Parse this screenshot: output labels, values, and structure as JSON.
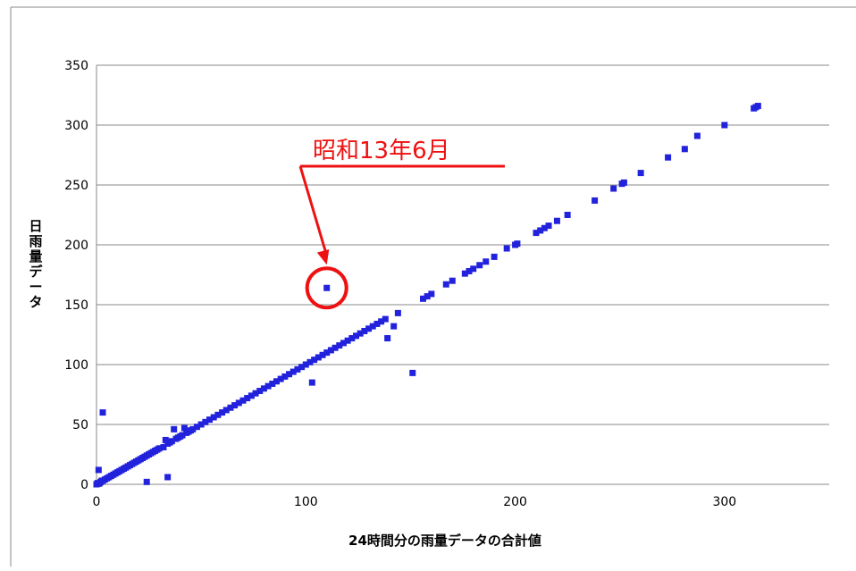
{
  "chart_data": {
    "type": "scatter",
    "xlabel": "24時間分の雨量データの合計値",
    "ylabel": "日雨量データ",
    "xlim": [
      0,
      350
    ],
    "ylim": [
      0,
      350
    ],
    "x_ticks": [
      0,
      100,
      200,
      300
    ],
    "y_ticks": [
      0,
      50,
      100,
      150,
      200,
      250,
      300,
      350
    ],
    "grid": "horizontal",
    "marker_color": "#2222dd",
    "annotation_color": "#ee1111",
    "annotation": {
      "text": "昭和13年6月",
      "point": [
        110,
        164
      ]
    },
    "points": [
      [
        0,
        0
      ],
      [
        0.5,
        1
      ],
      [
        1,
        12
      ],
      [
        1,
        0.5
      ],
      [
        1.5,
        1
      ],
      [
        2,
        2
      ],
      [
        2.5,
        3
      ],
      [
        3,
        60
      ],
      [
        3,
        3
      ],
      [
        4,
        4
      ],
      [
        5,
        5
      ],
      [
        6,
        6
      ],
      [
        7,
        7
      ],
      [
        8,
        8
      ],
      [
        9,
        9
      ],
      [
        10,
        10
      ],
      [
        11,
        11
      ],
      [
        12,
        12
      ],
      [
        13,
        13
      ],
      [
        14,
        14
      ],
      [
        15,
        15
      ],
      [
        16,
        16
      ],
      [
        17,
        17
      ],
      [
        18,
        18
      ],
      [
        19,
        19
      ],
      [
        20,
        20
      ],
      [
        21,
        21
      ],
      [
        22,
        22
      ],
      [
        23,
        23
      ],
      [
        24,
        24
      ],
      [
        25,
        25
      ],
      [
        26,
        26
      ],
      [
        27,
        27
      ],
      [
        28,
        28
      ],
      [
        29,
        29
      ],
      [
        30,
        30
      ],
      [
        32,
        31
      ],
      [
        33,
        37
      ],
      [
        34,
        34
      ],
      [
        35,
        35
      ],
      [
        36,
        36
      ],
      [
        37,
        46
      ],
      [
        38,
        38
      ],
      [
        39,
        39
      ],
      [
        40,
        40
      ],
      [
        41,
        41
      ],
      [
        42,
        47
      ],
      [
        43,
        43
      ],
      [
        44,
        44
      ],
      [
        45,
        45
      ],
      [
        46,
        46
      ],
      [
        48,
        48
      ],
      [
        50,
        50
      ],
      [
        52,
        52
      ],
      [
        54,
        54
      ],
      [
        56,
        56
      ],
      [
        58,
        58
      ],
      [
        60,
        60
      ],
      [
        62,
        62
      ],
      [
        64,
        64
      ],
      [
        66,
        66
      ],
      [
        68,
        68
      ],
      [
        70,
        70
      ],
      [
        72,
        72
      ],
      [
        74,
        74
      ],
      [
        76,
        76
      ],
      [
        78,
        78
      ],
      [
        80,
        80
      ],
      [
        82,
        82
      ],
      [
        84,
        84
      ],
      [
        86,
        86
      ],
      [
        88,
        88
      ],
      [
        90,
        90
      ],
      [
        92,
        92
      ],
      [
        94,
        94
      ],
      [
        96,
        96
      ],
      [
        98,
        98
      ],
      [
        100,
        100
      ],
      [
        102,
        102
      ],
      [
        103,
        85
      ],
      [
        104,
        104
      ],
      [
        106,
        106
      ],
      [
        108,
        108
      ],
      [
        110,
        110
      ],
      [
        112,
        112
      ],
      [
        114,
        114
      ],
      [
        116,
        116
      ],
      [
        118,
        118
      ],
      [
        120,
        120
      ],
      [
        122,
        122
      ],
      [
        124,
        124
      ],
      [
        126,
        126
      ],
      [
        128,
        128
      ],
      [
        130,
        130
      ],
      [
        132,
        132
      ],
      [
        134,
        134
      ],
      [
        136,
        136
      ],
      [
        138,
        138
      ],
      [
        139,
        122
      ],
      [
        142,
        132
      ],
      [
        144,
        143
      ],
      [
        151,
        93
      ],
      [
        156,
        155
      ],
      [
        158,
        157
      ],
      [
        160,
        159
      ],
      [
        167,
        167
      ],
      [
        170,
        170
      ],
      [
        176,
        176
      ],
      [
        178,
        178
      ],
      [
        180,
        180
      ],
      [
        183,
        183
      ],
      [
        186,
        186
      ],
      [
        190,
        190
      ],
      [
        196,
        197
      ],
      [
        200,
        200
      ],
      [
        201,
        201
      ],
      [
        210,
        210
      ],
      [
        212,
        212
      ],
      [
        214,
        214
      ],
      [
        216,
        216
      ],
      [
        220,
        220
      ],
      [
        225,
        225
      ],
      [
        238,
        237
      ],
      [
        247,
        247
      ],
      [
        251,
        251
      ],
      [
        252,
        252
      ],
      [
        260,
        260
      ],
      [
        273,
        273
      ],
      [
        281,
        280
      ],
      [
        287,
        291
      ],
      [
        300,
        300
      ],
      [
        314,
        314
      ],
      [
        315,
        315
      ],
      [
        316,
        316
      ],
      [
        24,
        2
      ],
      [
        34,
        6
      ],
      [
        110,
        164
      ]
    ]
  }
}
